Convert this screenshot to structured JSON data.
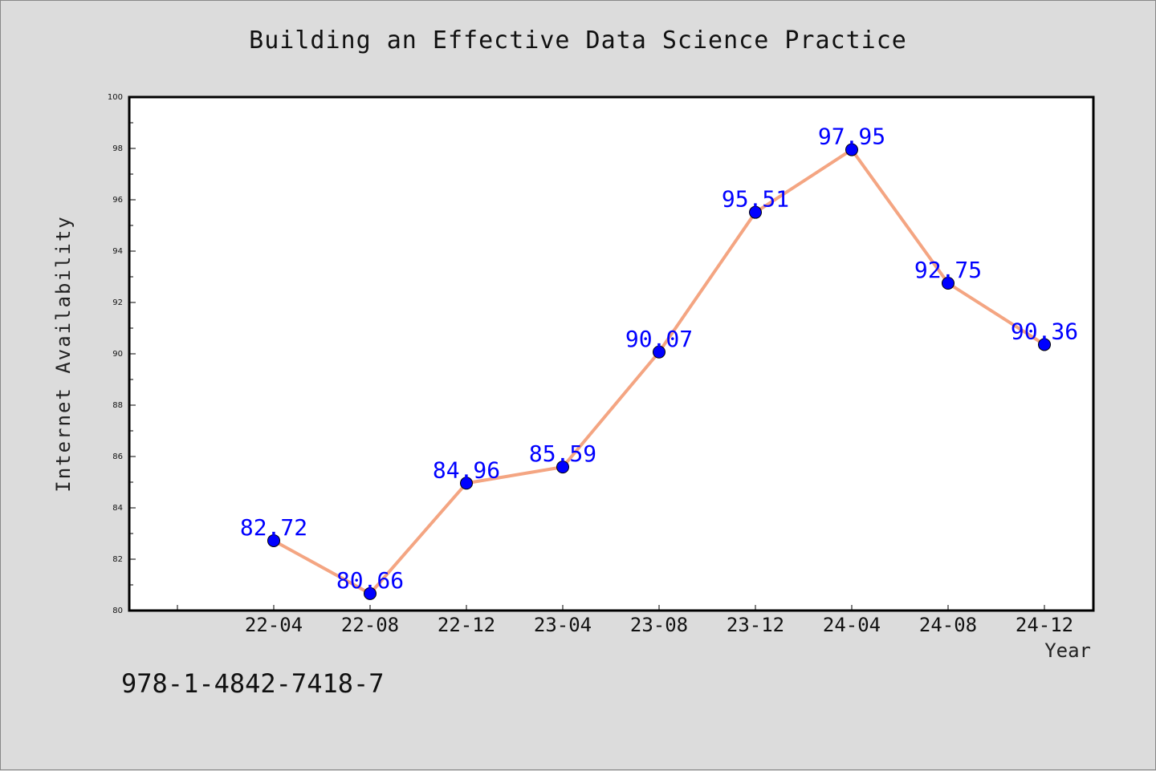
{
  "chart_data": {
    "type": "line",
    "title": "Building an Effective Data Science Practice",
    "xlabel": "Year",
    "ylabel": "Internet Availability",
    "categories": [
      "22-04",
      "22-08",
      "22-12",
      "23-04",
      "23-08",
      "23-12",
      "24-04",
      "24-08",
      "24-12"
    ],
    "series": [
      {
        "values": [
          82.72,
          80.66,
          84.96,
          85.59,
          90.07,
          95.51,
          97.95,
          92.75,
          90.36
        ],
        "line_color": "#f4a582",
        "marker_color": "#0000ff"
      }
    ],
    "data_labels": [
      "82.72",
      "80.66",
      "84.96",
      "85.59",
      "90.07",
      "95.51",
      "97.95",
      "92.75",
      "90.36"
    ],
    "ylim": [
      80,
      100
    ],
    "yticks": [
      "80",
      "82",
      "84",
      "86",
      "88",
      "90",
      "92",
      "94",
      "96",
      "98",
      "100"
    ],
    "grid": false,
    "legend": "none"
  },
  "footer": {
    "isbn": "978-1-4842-7418-7"
  },
  "colors": {
    "background": "#dcdcdc",
    "plot_background": "#ffffff",
    "line": "#f4a582",
    "marker": "#0000ff",
    "label": "#0000ff"
  }
}
